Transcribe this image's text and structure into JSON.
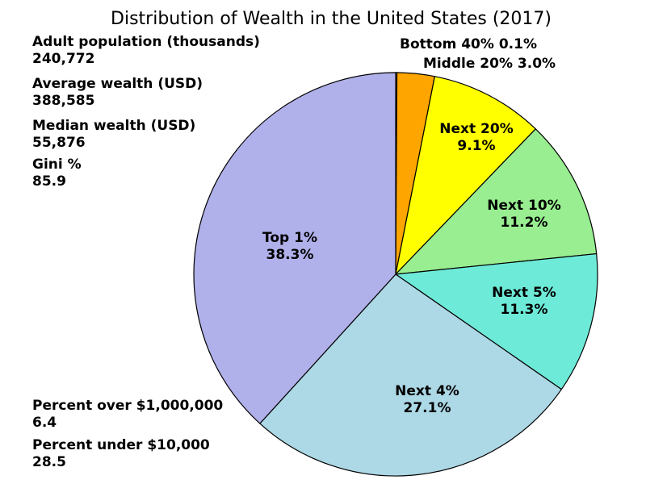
{
  "chart_data": {
    "type": "pie",
    "title": "Distribution of Wealth in the United States (2017)",
    "slices": [
      {
        "label": "Bottom 40%",
        "value": 0.1,
        "value_label": "0.1%",
        "color": "#f4a261"
      },
      {
        "label": "Middle 20%",
        "value": 3.0,
        "value_label": "3.0%",
        "color": "#ffa500"
      },
      {
        "label": "Next 20%",
        "value": 9.1,
        "value_label": "9.1%",
        "color": "#ffff00"
      },
      {
        "label": "Next 10%",
        "value": 11.2,
        "value_label": "11.2%",
        "color": "#98ee90"
      },
      {
        "label": "Next 5%",
        "value": 11.3,
        "value_label": "11.3%",
        "color": "#6eead8"
      },
      {
        "label": "Next 4%",
        "value": 27.1,
        "value_label": "27.1%",
        "color": "#add8e6"
      },
      {
        "label": "Top 1%",
        "value": 38.3,
        "value_label": "38.3%",
        "color": "#b0b0ea"
      }
    ]
  },
  "stats_top": [
    {
      "label": "Adult population (thousands)",
      "value": "240,772"
    },
    {
      "label": "Average wealth (USD)",
      "value": "388,585"
    },
    {
      "label": "Median wealth (USD)",
      "value": "55,876"
    },
    {
      "label": "Gini %",
      "value": "85.9"
    }
  ],
  "stats_bottom": [
    {
      "label": "Percent over $1,000,000",
      "value": "6.4"
    },
    {
      "label": "Percent under $10,000",
      "value": "28.5"
    }
  ]
}
